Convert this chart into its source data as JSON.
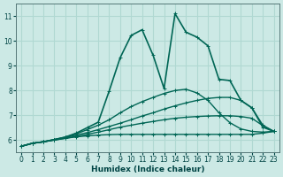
{
  "xlabel": "Humidex (Indice chaleur)",
  "background_color": "#cce9e5",
  "grid_color": "#b0d8d2",
  "line_color": "#006655",
  "xlim": [
    -0.5,
    23.5
  ],
  "ylim": [
    5.5,
    11.5
  ],
  "xticks": [
    0,
    1,
    2,
    3,
    4,
    5,
    6,
    7,
    8,
    9,
    10,
    11,
    12,
    13,
    14,
    15,
    16,
    17,
    18,
    19,
    20,
    21,
    22,
    23
  ],
  "yticks": [
    6,
    7,
    8,
    9,
    10,
    11
  ],
  "series": [
    {
      "x": [
        0,
        1,
        2,
        3,
        4,
        5,
        6,
        7,
        8,
        9,
        10,
        11,
        12,
        13,
        14,
        15,
        16,
        17,
        18,
        19,
        20,
        21,
        22,
        23
      ],
      "y": [
        5.75,
        5.87,
        5.93,
        6.0,
        6.07,
        6.13,
        6.17,
        6.2,
        6.22,
        6.23,
        6.23,
        6.23,
        6.23,
        6.23,
        6.23,
        6.23,
        6.23,
        6.23,
        6.23,
        6.23,
        6.23,
        6.23,
        6.28,
        6.35
      ],
      "linewidth": 1.0
    },
    {
      "x": [
        0,
        1,
        2,
        3,
        4,
        5,
        6,
        7,
        8,
        9,
        10,
        11,
        12,
        13,
        14,
        15,
        16,
        17,
        18,
        19,
        20,
        21,
        22,
        23
      ],
      "y": [
        5.75,
        5.87,
        5.93,
        6.0,
        6.07,
        6.15,
        6.23,
        6.32,
        6.42,
        6.52,
        6.6,
        6.68,
        6.75,
        6.82,
        6.88,
        6.92,
        6.95,
        6.97,
        6.98,
        6.98,
        6.95,
        6.88,
        6.58,
        6.35
      ],
      "linewidth": 1.0
    },
    {
      "x": [
        0,
        1,
        2,
        3,
        4,
        5,
        6,
        7,
        8,
        9,
        10,
        11,
        12,
        13,
        14,
        15,
        16,
        17,
        18,
        19,
        20,
        21,
        22,
        23
      ],
      "y": [
        5.75,
        5.87,
        5.93,
        6.02,
        6.1,
        6.2,
        6.3,
        6.42,
        6.55,
        6.68,
        6.82,
        6.97,
        7.1,
        7.25,
        7.38,
        7.5,
        7.6,
        7.68,
        7.72,
        7.72,
        7.6,
        7.3,
        6.6,
        6.35
      ],
      "linewidth": 1.0
    },
    {
      "x": [
        0,
        1,
        2,
        3,
        4,
        5,
        6,
        7,
        8,
        9,
        10,
        11,
        12,
        13,
        14,
        15,
        16,
        17,
        18,
        19,
        20,
        21,
        22,
        23
      ],
      "y": [
        5.75,
        5.87,
        5.93,
        6.02,
        6.12,
        6.25,
        6.42,
        6.6,
        6.82,
        7.1,
        7.35,
        7.55,
        7.72,
        7.88,
        8.0,
        8.05,
        7.9,
        7.6,
        7.1,
        6.7,
        6.45,
        6.35,
        6.32,
        6.35
      ],
      "linewidth": 1.0
    },
    {
      "x": [
        0,
        1,
        2,
        3,
        4,
        5,
        6,
        7,
        8,
        9,
        10,
        11,
        12,
        13,
        14,
        15,
        16,
        17,
        18,
        19,
        20,
        21,
        22,
        23
      ],
      "y": [
        5.75,
        5.87,
        5.93,
        6.02,
        6.12,
        6.28,
        6.5,
        6.72,
        7.98,
        9.32,
        10.22,
        10.45,
        9.42,
        8.08,
        11.1,
        10.35,
        10.15,
        9.8,
        8.45,
        8.4,
        7.6,
        7.3,
        6.52,
        6.35
      ],
      "linewidth": 1.2
    }
  ]
}
